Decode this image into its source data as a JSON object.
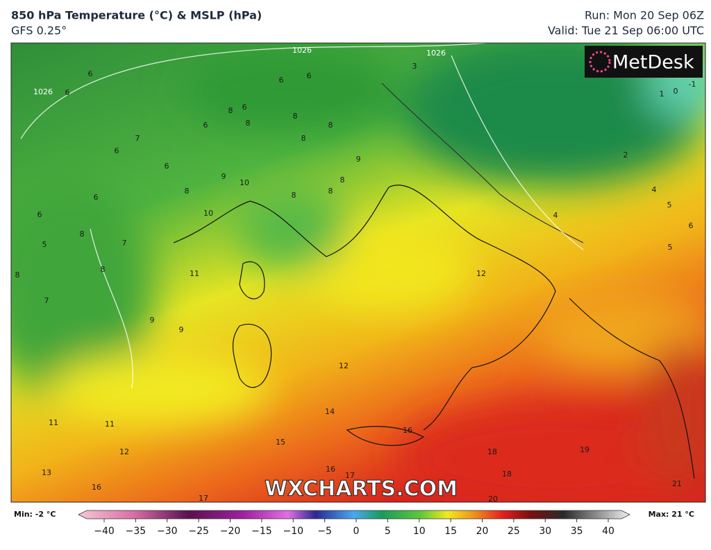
{
  "header": {
    "title": "850 hPa Temperature (°C) & MSLP (hPa)",
    "subtitle": "GFS 0.25°",
    "run": "Run: Mon 20 Sep 06Z",
    "valid": "Valid: Tue 21 Sep 06:00 UTC"
  },
  "logo": "MetDesk",
  "watermark": "WXCHARTS.COM",
  "map": {
    "isobar_labels": [
      1026,
      1026,
      1026
    ],
    "temperature_labels": [
      6,
      6,
      6,
      3,
      1,
      0,
      -1,
      6,
      6,
      7,
      6,
      6,
      8,
      8,
      6,
      8,
      8,
      8,
      9,
      9,
      10,
      8,
      6,
      8,
      8,
      8,
      6,
      10,
      5,
      8,
      8,
      7,
      2,
      4,
      5,
      6,
      5,
      4,
      11,
      12,
      7,
      8,
      9,
      9,
      12,
      14,
      11,
      11,
      12,
      15,
      16,
      18,
      19,
      13,
      16,
      17,
      18,
      16,
      21,
      17,
      20
    ]
  },
  "colorbar": {
    "min_label": "Min: -2 °C",
    "max_label": "Max: 21 °C",
    "range": [
      -40,
      40
    ],
    "ticks": [
      {
        "value": -40,
        "label": "−40"
      },
      {
        "value": -35,
        "label": "−35"
      },
      {
        "value": -30,
        "label": "−30"
      },
      {
        "value": -25,
        "label": "−25"
      },
      {
        "value": -20,
        "label": "−20"
      },
      {
        "value": -15,
        "label": "−15"
      },
      {
        "value": -10,
        "label": "−10"
      },
      {
        "value": -5,
        "label": "−5"
      },
      0,
      5,
      10,
      15,
      20,
      25,
      30,
      35,
      40
    ]
  }
}
